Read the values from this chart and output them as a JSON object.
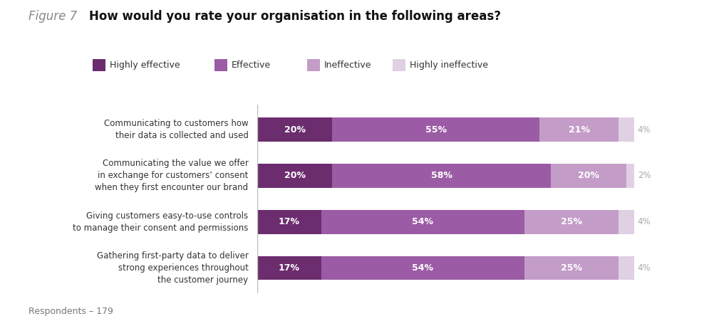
{
  "title_prefix": "Figure 7",
  "title": "How would you rate your organisation in the following areas?",
  "respondents": "Respondents – 179",
  "categories": [
    "Communicating to customers how\ntheir data is collected and used",
    "Communicating the value we offer\nin exchange for customers’ consent\nwhen they first encounter our brand",
    "Giving customers easy-to-use controls\nto manage their consent and permissions",
    "Gathering first-party data to deliver\nstrong experiences throughout\nthe customer journey"
  ],
  "series": [
    {
      "label": "Highly effective",
      "color": "#6b2d6e",
      "values": [
        20,
        20,
        17,
        17
      ]
    },
    {
      "label": "Effective",
      "color": "#9b5ca5",
      "values": [
        55,
        58,
        54,
        54
      ]
    },
    {
      "label": "Ineffective",
      "color": "#c49cc8",
      "values": [
        21,
        20,
        25,
        25
      ]
    },
    {
      "label": "Highly ineffective",
      "color": "#dfd0e3",
      "values": [
        4,
        2,
        4,
        4
      ]
    }
  ],
  "bg_color": "#ffffff",
  "bar_height": 0.52,
  "xlim_max": 100,
  "figsize": [
    10.02,
    4.58
  ],
  "dpi": 100,
  "title_fontsize": 12,
  "label_fontsize": 8.5,
  "bar_label_fontsize": 9,
  "outside_label_fontsize": 8.5,
  "legend_fontsize": 9
}
